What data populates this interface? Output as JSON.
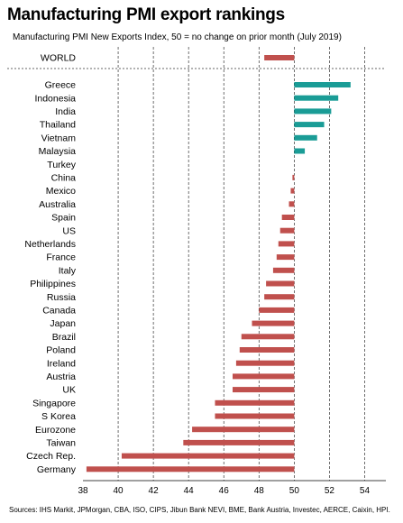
{
  "header": {
    "title": "Manufacturing PMI export rankings",
    "subtitle": "Manufacturing PMI New Exports Index, 50 = no change on prior month (July 2019)"
  },
  "footer": {
    "source": "Sources: IHS Markit, JPMorgan, CBA, ISO, CIPS, Jibun Bank NEVI, BME, Bank Austria, Investec, AERCE, Caixin, HPI."
  },
  "chart_data": {
    "type": "bar",
    "orientation": "horizontal",
    "baseline": 50,
    "xlim": [
      38,
      55
    ],
    "xticks": [
      38,
      40,
      42,
      44,
      46,
      48,
      50,
      52,
      54
    ],
    "grid": "vertical dashed",
    "colors": {
      "above": "#1a9c96",
      "below": "#c0504d"
    },
    "world": {
      "category": "WORLD",
      "value": 48.3
    },
    "categories": [
      "Greece",
      "Indonesia",
      "India",
      "Thailand",
      "Vietnam",
      "Malaysia",
      "Turkey",
      "China",
      "Mexico",
      "Australia",
      "Spain",
      "US",
      "Netherlands",
      "France",
      "Italy",
      "Philippines",
      "Russia",
      "Canada",
      "Japan",
      "Brazil",
      "Poland",
      "Ireland",
      "Austria",
      "UK",
      "Singapore",
      "S Korea",
      "Eurozone",
      "Taiwan",
      "Czech Rep.",
      "Germany"
    ],
    "values": [
      53.2,
      52.5,
      52.1,
      51.7,
      51.3,
      50.6,
      50.0,
      49.9,
      49.8,
      49.7,
      49.3,
      49.2,
      49.1,
      49.0,
      48.8,
      48.4,
      48.3,
      48.0,
      47.6,
      47.0,
      46.9,
      46.7,
      46.5,
      46.5,
      45.5,
      45.5,
      44.2,
      43.7,
      40.2,
      38.2
    ]
  }
}
